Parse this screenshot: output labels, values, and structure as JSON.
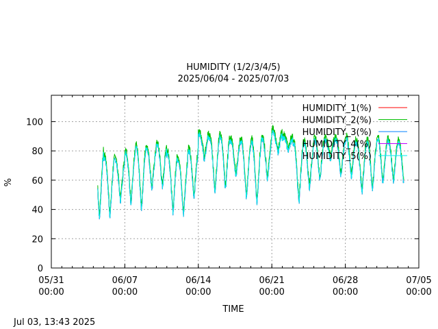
{
  "chart_data": {
    "type": "line",
    "title": "HUMIDITY (1/2/3/4/5)",
    "subtitle": "2025/06/04 - 2025/07/03",
    "xlabel": "TIME",
    "ylabel": "%",
    "timestamp": "Jul 03, 13:43 2025",
    "ylim": [
      0,
      118
    ],
    "yticks": [
      "0",
      "20",
      "40",
      "60",
      "80",
      "100"
    ],
    "xlim": [
      "2025-05-31 00:00",
      "2025-07-05 00:00"
    ],
    "xticks": [
      {
        "date": "05/31",
        "time": "00:00"
      },
      {
        "date": "06/07",
        "time": "00:00"
      },
      {
        "date": "06/14",
        "time": "00:00"
      },
      {
        "date": "06/21",
        "time": "00:00"
      },
      {
        "date": "06/28",
        "time": "00:00"
      },
      {
        "date": "07/05",
        "time": "00:00"
      }
    ],
    "grid": true,
    "legend_position": "top-right",
    "series": [
      {
        "name": "HUMIDITY_1(%)",
        "color": "#ff0000"
      },
      {
        "name": "HUMIDITY_2(%)",
        "color": "#00c000"
      },
      {
        "name": "HUMIDITY_3(%)",
        "color": "#0080ff"
      },
      {
        "name": "HUMIDITY_4(%)",
        "color": "#c000ff"
      },
      {
        "name": "HUMIDITY_5(%)",
        "color": "#00eeee"
      }
    ],
    "daily_range": [
      {
        "date": "2025-06-04",
        "max": 82,
        "min": 33
      },
      {
        "date": "2025-06-05",
        "max": 75,
        "min": 35
      },
      {
        "date": "2025-06-06",
        "max": 74,
        "min": 45
      },
      {
        "date": "2025-06-07",
        "max": 79,
        "min": 44
      },
      {
        "date": "2025-06-08",
        "max": 82,
        "min": 40
      },
      {
        "date": "2025-06-09",
        "max": 82,
        "min": 53
      },
      {
        "date": "2025-06-10",
        "max": 84,
        "min": 54
      },
      {
        "date": "2025-06-11",
        "max": 78,
        "min": 37
      },
      {
        "date": "2025-06-12",
        "max": 74,
        "min": 36
      },
      {
        "date": "2025-06-13",
        "max": 80,
        "min": 48
      },
      {
        "date": "2025-06-14",
        "max": 92,
        "min": 73
      },
      {
        "date": "2025-06-15",
        "max": 88,
        "min": 52
      },
      {
        "date": "2025-06-16",
        "max": 90,
        "min": 53
      },
      {
        "date": "2025-06-17",
        "max": 87,
        "min": 62
      },
      {
        "date": "2025-06-18",
        "max": 86,
        "min": 47
      },
      {
        "date": "2025-06-19",
        "max": 86,
        "min": 44
      },
      {
        "date": "2025-06-20",
        "max": 88,
        "min": 60
      },
      {
        "date": "2025-06-21",
        "max": 93,
        "min": 78
      },
      {
        "date": "2025-06-22",
        "max": 89,
        "min": 80
      },
      {
        "date": "2025-06-23",
        "max": 85,
        "min": 44
      },
      {
        "date": "2025-06-24",
        "max": 85,
        "min": 54
      },
      {
        "date": "2025-06-25",
        "max": 87,
        "min": 60
      },
      {
        "date": "2025-06-26",
        "max": 87,
        "min": 74
      },
      {
        "date": "2025-06-27",
        "max": 88,
        "min": 63
      },
      {
        "date": "2025-06-28",
        "max": 88,
        "min": 62
      },
      {
        "date": "2025-06-29",
        "max": 85,
        "min": 51
      },
      {
        "date": "2025-06-30",
        "max": 86,
        "min": 53
      },
      {
        "date": "2025-07-01",
        "max": 88,
        "min": 57
      },
      {
        "date": "2025-07-02",
        "max": 87,
        "min": 58
      },
      {
        "date": "2025-07-03",
        "max": 86,
        "min": 55
      }
    ]
  }
}
